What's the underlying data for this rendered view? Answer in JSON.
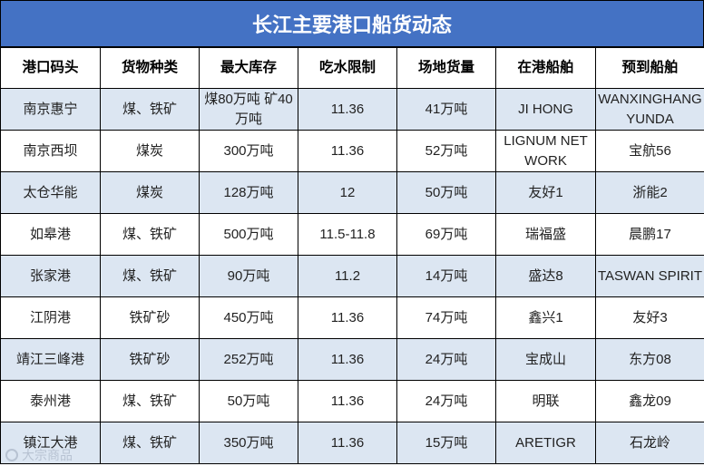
{
  "title": "长江主要港口船货动态",
  "headers": [
    "港口码头",
    "货物种类",
    "最大库存",
    "吃水限制",
    "场地货量",
    "在港船舶",
    "预到船舶"
  ],
  "rows": [
    [
      "南京惠宁",
      "煤、铁矿",
      "煤80万吨 矿40万吨",
      "11.36",
      "41万吨",
      "JI HONG",
      "WANXINGHANGYUNDA"
    ],
    [
      "南京西坝",
      "煤炭",
      "300万吨",
      "11.36",
      "52万吨",
      "LIGNUM NETWORK",
      "宝航56"
    ],
    [
      "太仓华能",
      "煤炭",
      "128万吨",
      "12",
      "50万吨",
      "友好1",
      "浙能2"
    ],
    [
      "如皋港",
      "煤、铁矿",
      "500万吨",
      "11.5-11.8",
      "69万吨",
      "瑞福盛",
      "晨鹏17"
    ],
    [
      "张家港",
      "煤、铁矿",
      "90万吨",
      "11.2",
      "14万吨",
      "盛达8",
      "TASWAN SPIRIT"
    ],
    [
      "江阴港",
      "铁矿砂",
      "450万吨",
      "11.36",
      "74万吨",
      "鑫兴1",
      "友好3"
    ],
    [
      "靖江三峰港",
      "铁矿砂",
      "252万吨",
      "11.36",
      "24万吨",
      "宝成山",
      "东方08"
    ],
    [
      "泰州港",
      "煤、铁矿",
      "50万吨",
      "11.36",
      "24万吨",
      "明联",
      "鑫龙09"
    ],
    [
      "镇江大港",
      "煤、铁矿",
      "350万吨",
      "11.36",
      "15万吨",
      "ARETIGR",
      "石龙岭"
    ]
  ],
  "watermark": "大宗商品"
}
